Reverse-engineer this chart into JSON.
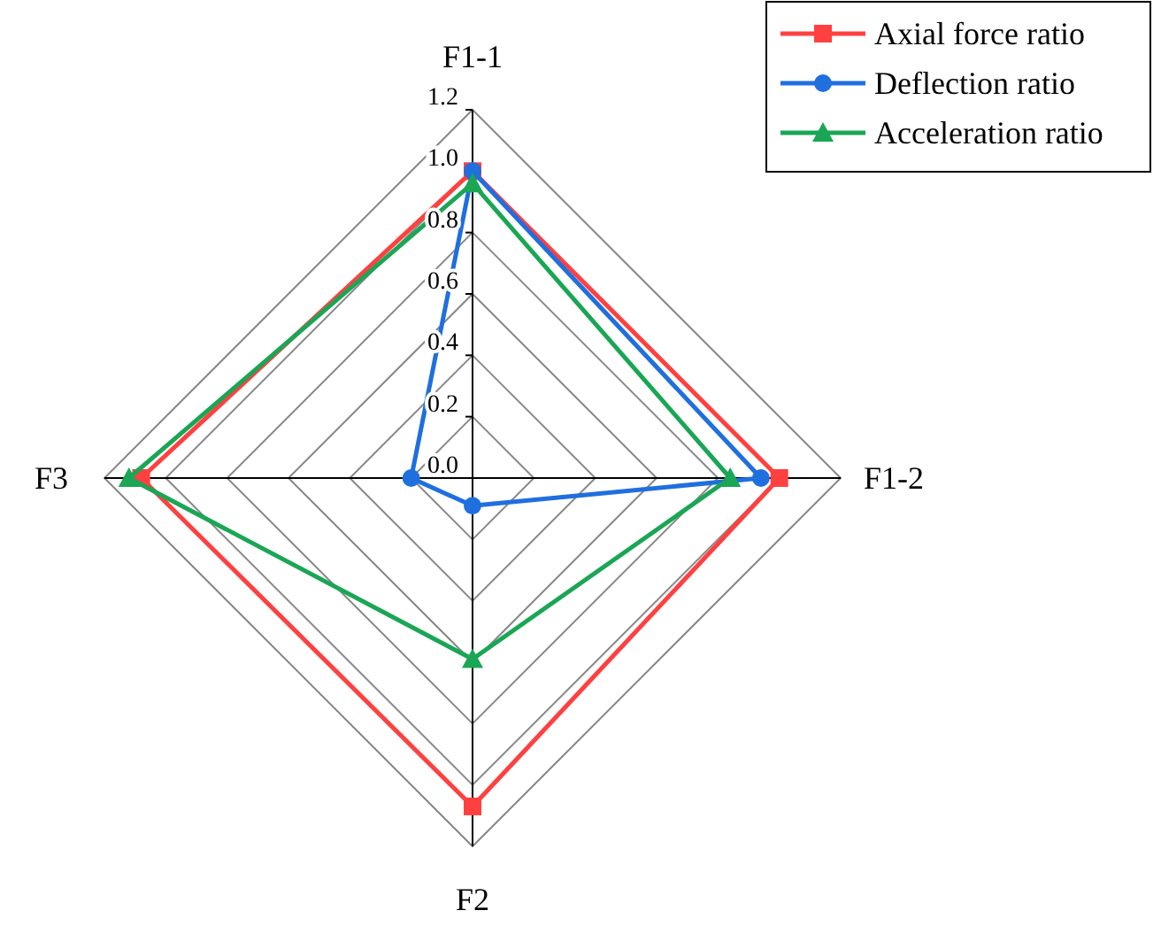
{
  "chart_data": {
    "type": "radar",
    "categories": [
      "F1-1",
      "F1-2",
      "F2",
      "F3"
    ],
    "series": [
      {
        "name": "Axial force ratio",
        "color": "#ff4040",
        "marker": "square",
        "values": [
          1.0,
          1.0,
          1.07,
          1.08
        ]
      },
      {
        "name": "Deflection ratio",
        "color": "#1f6fdf",
        "marker": "circle",
        "values": [
          1.0,
          0.94,
          0.09,
          0.2
        ]
      },
      {
        "name": "Acceleration ratio",
        "color": "#1aa655",
        "marker": "triangle",
        "values": [
          0.96,
          0.84,
          0.59,
          1.12
        ]
      }
    ],
    "ylim": [
      0,
      1.2
    ],
    "yticks": [
      {
        "value": 0,
        "label": "0.0"
      },
      0.2,
      0.4,
      0.6,
      0.8,
      {
        "value": 1,
        "label": "1.0"
      },
      1.2
    ],
    "grid": true,
    "legend": "top right"
  }
}
